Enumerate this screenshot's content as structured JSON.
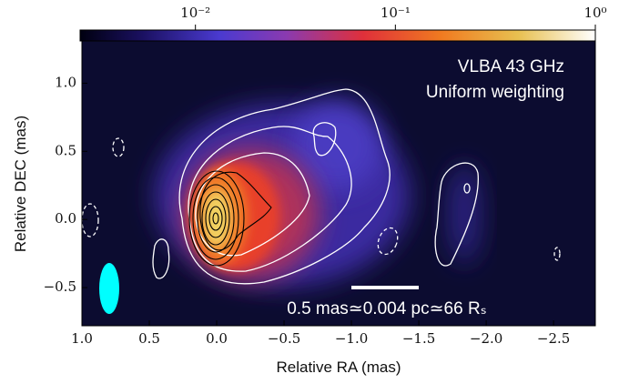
{
  "chart_data": {
    "type": "image",
    "xlabel": "Relative RA (mas)",
    "ylabel": "Relative DEC (mas)",
    "xlim": [
      1.0,
      -2.81
    ],
    "ylim": [
      -0.78,
      1.31
    ],
    "xticks": [
      {
        "value": 1.0,
        "label": "1.0"
      },
      {
        "value": 0.5,
        "label": "0.5"
      },
      {
        "value": 0.0,
        "label": "0.0"
      },
      {
        "value": -0.5,
        "label": "−0.5"
      },
      {
        "value": -1.0,
        "label": "−1.0"
      },
      {
        "value": -1.5,
        "label": "−1.5"
      },
      {
        "value": -2.0,
        "label": "−2.0"
      },
      {
        "value": -2.5,
        "label": "−2.5"
      }
    ],
    "yticks": [
      {
        "value": 1.0,
        "label": "1.0"
      },
      {
        "value": 0.5,
        "label": "0.5"
      },
      {
        "value": 0.0,
        "label": "0.0"
      },
      {
        "value": -0.5,
        "label": "−0.5"
      }
    ],
    "colorbar": {
      "scale": "log",
      "lim": [
        0.00265,
        1
      ],
      "ticks": [
        {
          "value": 0.01,
          "label": "10⁻²"
        },
        {
          "value": 0.1,
          "label": "10⁻¹"
        },
        {
          "value": 1,
          "label": "10⁰"
        }
      ]
    },
    "annotations": [
      "VLBA 43 GHz",
      "Uniform weighting"
    ],
    "scale_bar": {
      "length": 0.5,
      "label": "0.5 mas≃0.004 pc≃66 Rₛ"
    }
  }
}
